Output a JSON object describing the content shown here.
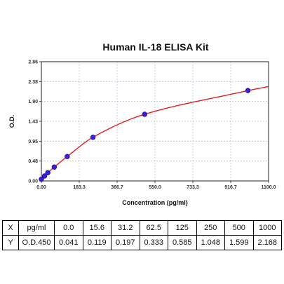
{
  "chart_data": {
    "type": "scatter",
    "title": "Human IL-18 ELISA Kit",
    "xlabel": "Concentration (pg/ml)",
    "ylabel": "O.D.",
    "xlim": [
      0,
      1100
    ],
    "ylim": [
      0,
      2.86
    ],
    "x_ticks": [
      "0.00",
      "183.3",
      "366.7",
      "550.0",
      "733.3",
      "916.7",
      "1100.0"
    ],
    "y_ticks": [
      "0.00",
      "0.48",
      "0.95",
      "1.43",
      "1.90",
      "2.38",
      "2.86"
    ],
    "grid": true,
    "series": [
      {
        "x": [
          0.0,
          15.6,
          31.2,
          62.5,
          125,
          250,
          500,
          1000
        ],
        "y": [
          0.041,
          0.119,
          0.197,
          0.333,
          0.585,
          1.048,
          1.599,
          2.168
        ],
        "point_color": "#3a1fd6",
        "line_color": "#e02020"
      }
    ]
  },
  "table": {
    "rows": [
      [
        "X",
        "pg/ml",
        "0.0",
        "15.6",
        "31.2",
        "62.5",
        "125",
        "250",
        "500",
        "1000"
      ],
      [
        "Y",
        "O.D.450",
        "0.041",
        "0.119",
        "0.197",
        "0.333",
        "0.585",
        "1.048",
        "1.599",
        "2.168"
      ]
    ]
  }
}
